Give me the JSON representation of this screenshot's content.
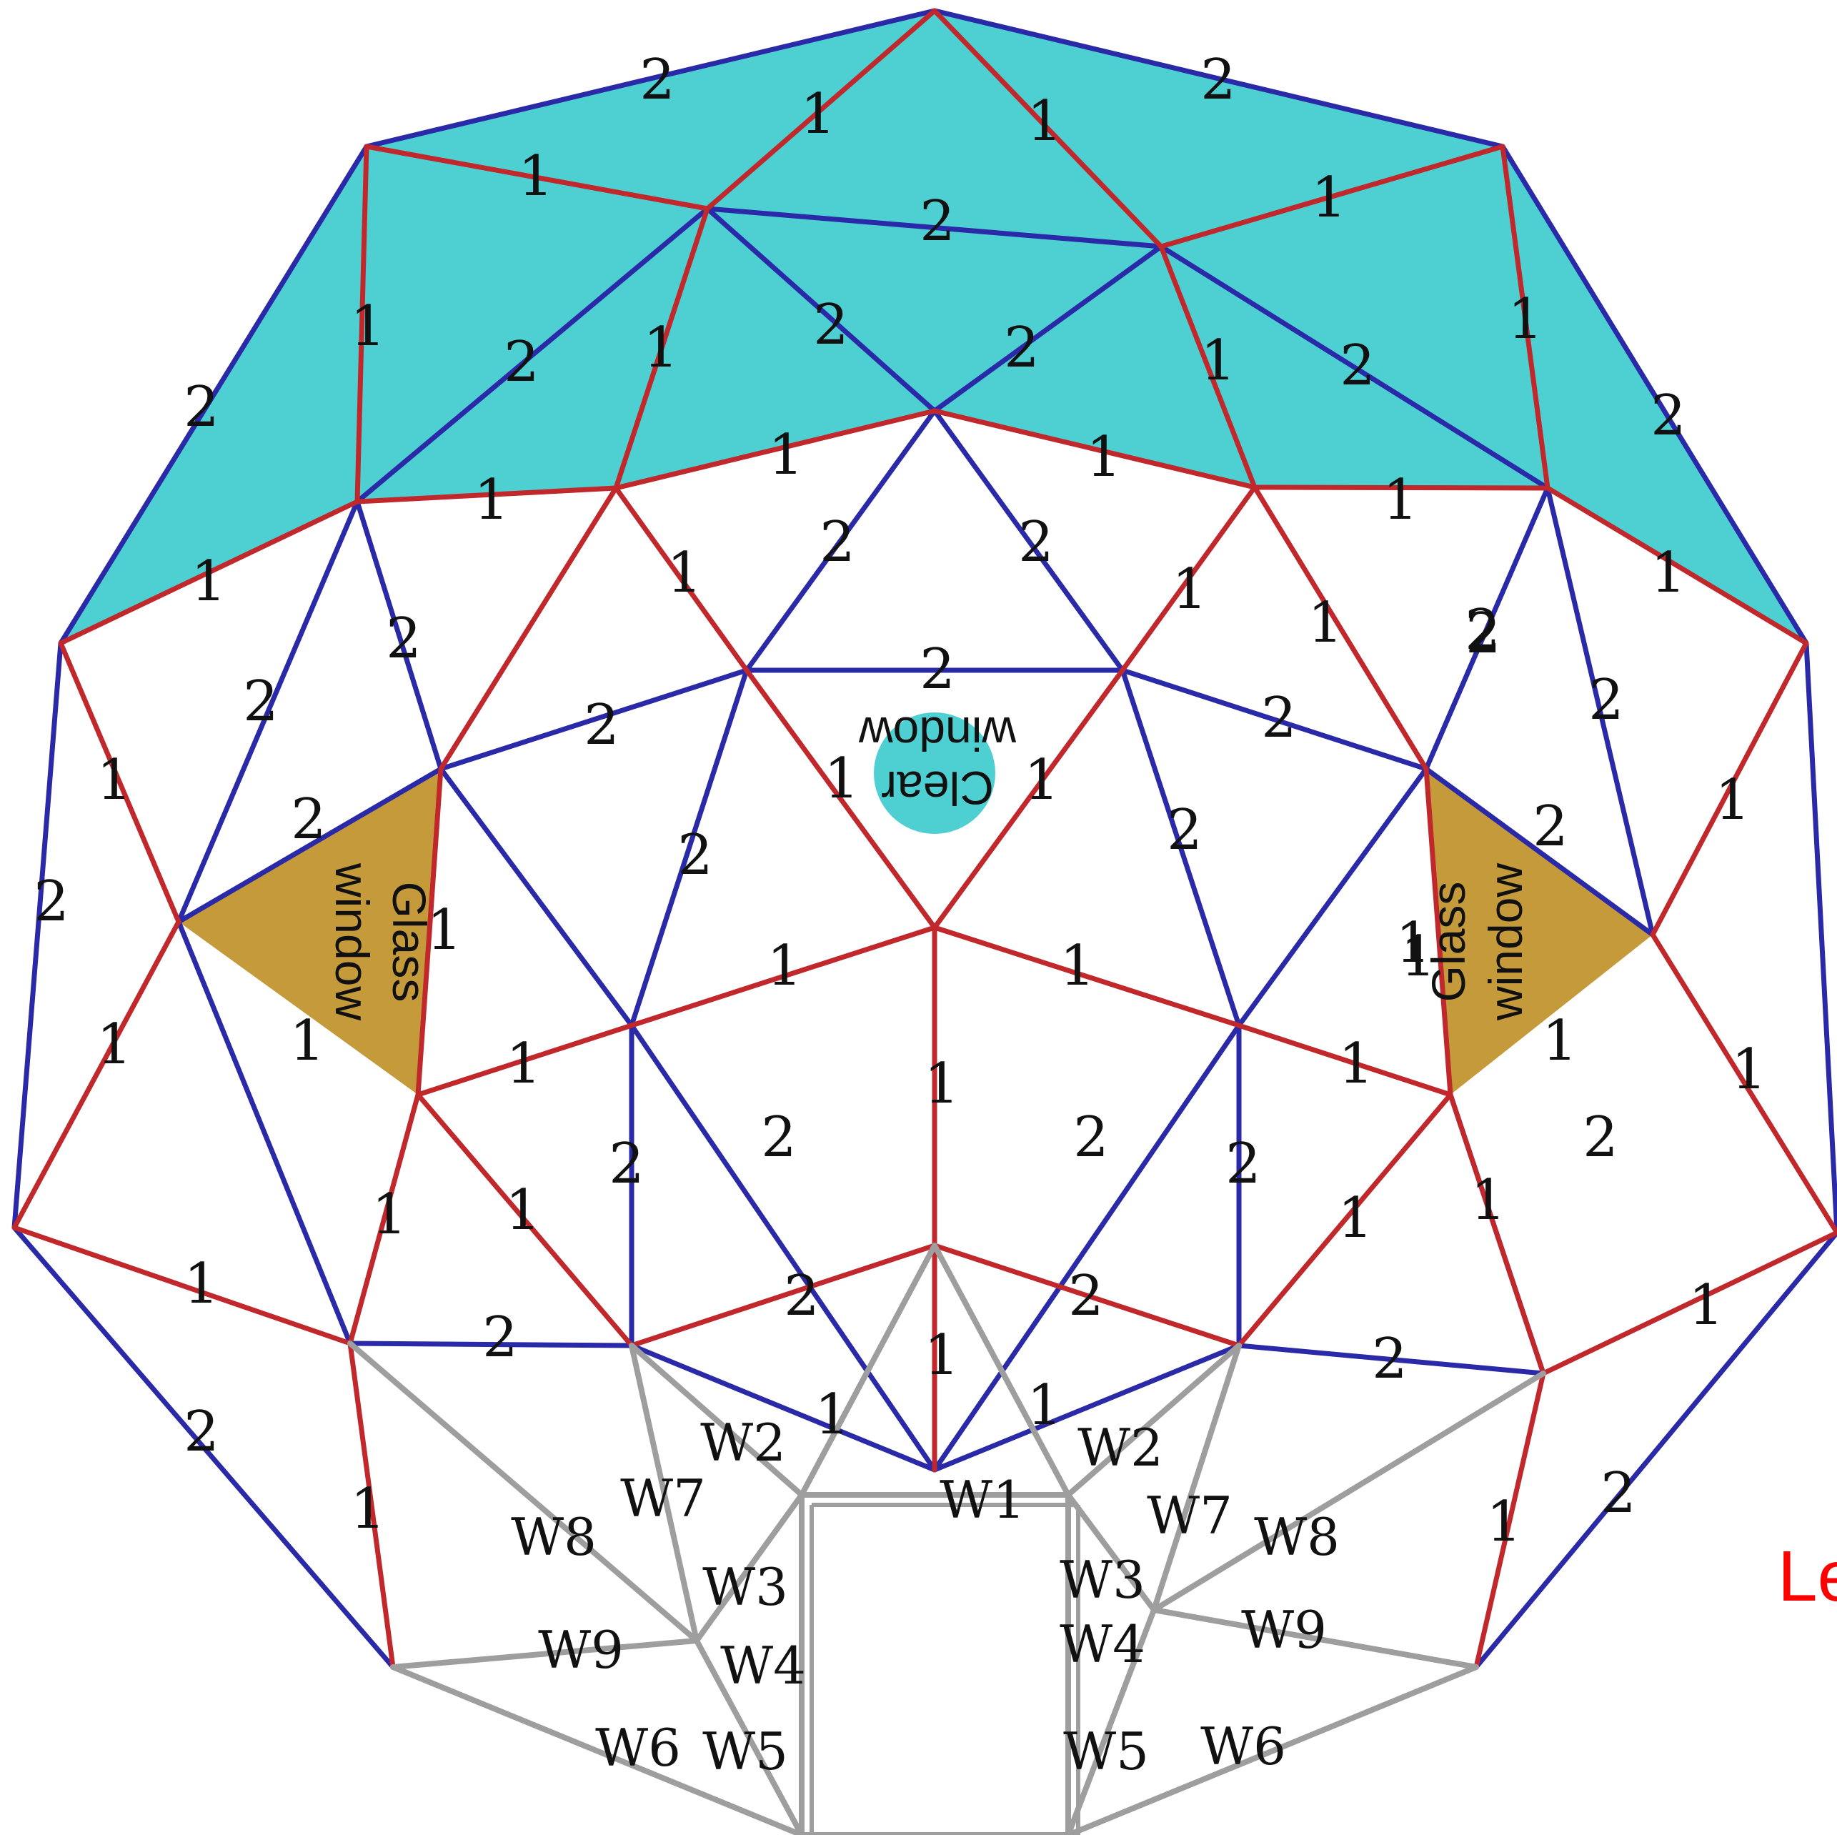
{
  "colors": {
    "strut_type_1": "#c0282c",
    "strut_type_2": "#2a2aa8",
    "wall_strut": "#9e9e9e",
    "cap_panel_fill": "#4ecfd2",
    "glass_window_fill": "#c49a3a",
    "clear_window_fill": "#4ecfd2"
  },
  "labels": {
    "glass_window_left_line1": "Glass",
    "glass_window_left_line2": "window",
    "glass_window_right_line1": "Glass",
    "glass_window_right_line2": "window",
    "clear_window_line1": "Clear",
    "clear_window_line2": "window",
    "edge_label_text": "Le"
  },
  "strut_codes": {
    "type1": "1",
    "type2": "2"
  },
  "wall_codes": [
    "W1",
    "W2",
    "W3",
    "W4",
    "W5",
    "W6",
    "W7",
    "W8",
    "W9"
  ]
}
